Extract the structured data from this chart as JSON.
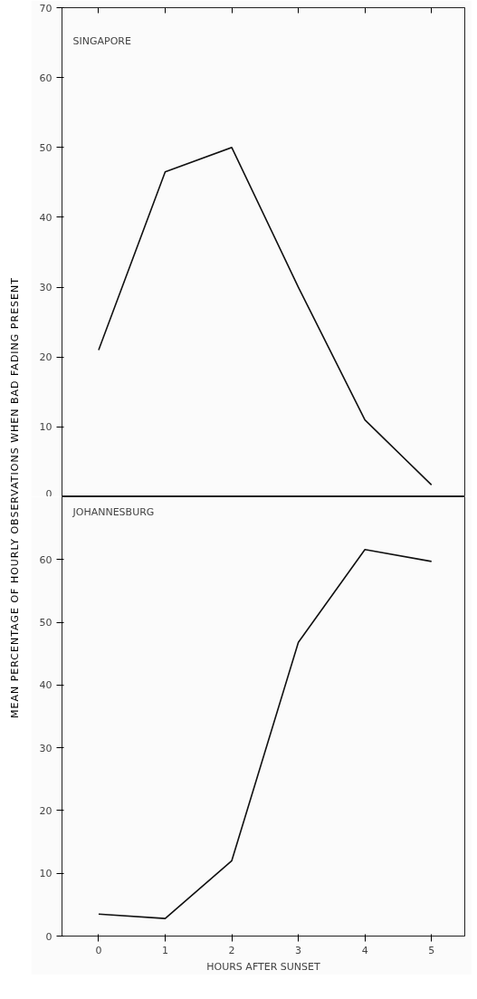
{
  "chart_data": [
    {
      "type": "line",
      "title": "SINGAPORE",
      "x": [
        0,
        1,
        2,
        3,
        4,
        5
      ],
      "values": [
        21,
        46.5,
        50,
        30,
        11,
        1.7
      ],
      "color": "#111111",
      "xlim": [
        -0.55,
        5.5
      ],
      "xticks": [
        0,
        1,
        2,
        3,
        4,
        5
      ],
      "ylim": [
        0,
        70
      ],
      "yticks": [
        0,
        10,
        20,
        30,
        40,
        50,
        60,
        70
      ],
      "tick_labels": "y",
      "grid": false,
      "marker": "none"
    },
    {
      "type": "line",
      "title": "JOHANNESBURG",
      "xlabel": "HOURS AFTER SUNSET",
      "ylabel": "MEAN PERCENTAGE OF HOURLY OBSERVATIONS WHEN BAD FADING PRESENT",
      "x": [
        0,
        1,
        2,
        3,
        4,
        5
      ],
      "values": [
        3.5,
        2.8,
        12,
        46.8,
        61.6,
        59.7
      ],
      "color": "#111111",
      "xlim": [
        -0.55,
        5.5
      ],
      "xticks": [
        0,
        1,
        2,
        3,
        4,
        5
      ],
      "ylim": [
        0,
        70
      ],
      "yticks": [
        0,
        10,
        20,
        30,
        40,
        50,
        60
      ],
      "grid": false,
      "marker": "none"
    }
  ]
}
